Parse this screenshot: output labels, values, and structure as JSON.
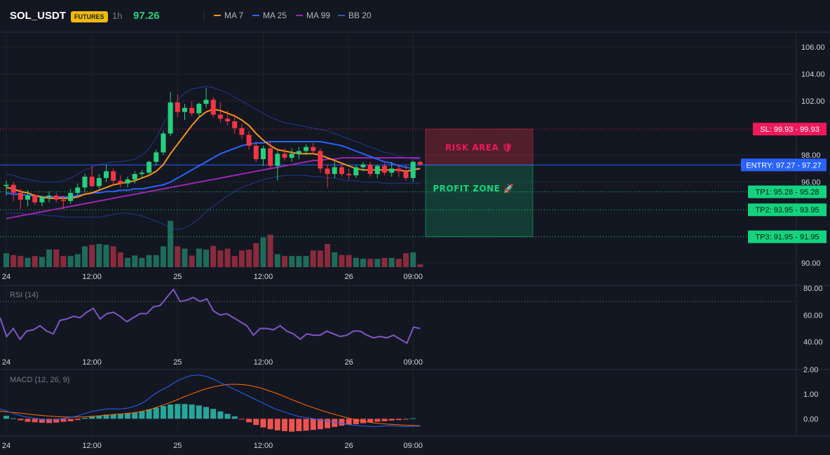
{
  "header": {
    "symbol": "SOL_USDT",
    "badge": "FUTURES",
    "timeframe": "1h",
    "price": "97.26",
    "legend": [
      {
        "name": "MA 7",
        "color": "#f7931a"
      },
      {
        "name": "MA 25",
        "color": "#2962ff"
      },
      {
        "name": "MA 99",
        "color": "#9c27b0"
      },
      {
        "name": "BB 20",
        "color": "#1e3a8a"
      }
    ]
  },
  "colors": {
    "up": "#26d07c",
    "down": "#f23645",
    "up_volume": "#1f6b5a",
    "down_volume": "#8a2a3d",
    "ma7": "#f7931a",
    "ma25": "#2962ff",
    "ma99": "#9c27b0",
    "bb": "#1e3a8a",
    "rsi": "#7e57c2",
    "macd": "#2962ff",
    "signal": "#ff6d00",
    "hist_up": "#26a69a",
    "hist_down": "#ef5350"
  },
  "chart_data": {
    "type": "candlestick",
    "price_ticks": [
      "106.00",
      "104.00",
      "102.00",
      "98.00",
      "96.00",
      "90.00"
    ],
    "price_ylim": [
      89.7,
      107
    ],
    "x_ticks": [
      {
        "label": "24",
        "index": 0
      },
      {
        "label": "12:00",
        "index": 12
      },
      {
        "label": "25",
        "index": 24
      },
      {
        "label": "12:00",
        "index": 36
      },
      {
        "label": "26",
        "index": 48
      },
      {
        "label": "09:00",
        "index": 57
      }
    ],
    "candles": [
      {
        "o": 95.7,
        "h": 96.1,
        "l": 95.0,
        "c": 95.8,
        "v": 0.3
      },
      {
        "o": 95.8,
        "h": 96.0,
        "l": 94.6,
        "c": 95.2,
        "v": 0.26
      },
      {
        "o": 95.2,
        "h": 95.5,
        "l": 94.0,
        "c": 94.7,
        "v": 0.24
      },
      {
        "o": 94.7,
        "h": 95.4,
        "l": 94.2,
        "c": 95.0,
        "v": 0.2
      },
      {
        "o": 95.0,
        "h": 95.1,
        "l": 94.3,
        "c": 94.5,
        "v": 0.24
      },
      {
        "o": 94.5,
        "h": 95.0,
        "l": 94.2,
        "c": 94.9,
        "v": 0.22
      },
      {
        "o": 94.9,
        "h": 95.3,
        "l": 94.5,
        "c": 95.0,
        "v": 0.38
      },
      {
        "o": 95.0,
        "h": 95.2,
        "l": 94.5,
        "c": 94.7,
        "v": 0.38
      },
      {
        "o": 94.7,
        "h": 95.0,
        "l": 94.0,
        "c": 94.6,
        "v": 0.24
      },
      {
        "o": 94.6,
        "h": 95.5,
        "l": 94.4,
        "c": 95.2,
        "v": 0.24
      },
      {
        "o": 95.2,
        "h": 95.9,
        "l": 95.0,
        "c": 95.6,
        "v": 0.28
      },
      {
        "o": 95.6,
        "h": 96.6,
        "l": 95.2,
        "c": 96.4,
        "v": 0.45
      },
      {
        "o": 96.4,
        "h": 97.2,
        "l": 95.6,
        "c": 95.7,
        "v": 0.48
      },
      {
        "o": 95.7,
        "h": 96.6,
        "l": 95.5,
        "c": 96.3,
        "v": 0.5
      },
      {
        "o": 96.3,
        "h": 97.3,
        "l": 96.0,
        "c": 96.8,
        "v": 0.48
      },
      {
        "o": 96.8,
        "h": 97.0,
        "l": 95.8,
        "c": 96.1,
        "v": 0.45
      },
      {
        "o": 96.1,
        "h": 96.5,
        "l": 95.6,
        "c": 95.9,
        "v": 0.32
      },
      {
        "o": 95.9,
        "h": 96.4,
        "l": 95.6,
        "c": 96.2,
        "v": 0.2
      },
      {
        "o": 96.2,
        "h": 96.8,
        "l": 95.9,
        "c": 96.6,
        "v": 0.25
      },
      {
        "o": 96.6,
        "h": 96.9,
        "l": 96.3,
        "c": 96.7,
        "v": 0.2
      },
      {
        "o": 96.7,
        "h": 97.6,
        "l": 96.6,
        "c": 97.5,
        "v": 0.26
      },
      {
        "o": 97.5,
        "h": 98.4,
        "l": 97.2,
        "c": 98.2,
        "v": 0.26
      },
      {
        "o": 98.2,
        "h": 99.8,
        "l": 98.0,
        "c": 99.6,
        "v": 0.45
      },
      {
        "o": 99.6,
        "h": 102.7,
        "l": 99.4,
        "c": 101.9,
        "v": 1.0
      },
      {
        "o": 101.9,
        "h": 102.5,
        "l": 100.8,
        "c": 101.2,
        "v": 0.45
      },
      {
        "o": 101.2,
        "h": 101.8,
        "l": 100.6,
        "c": 101.5,
        "v": 0.4
      },
      {
        "o": 101.5,
        "h": 102.0,
        "l": 100.9,
        "c": 101.1,
        "v": 0.25
      },
      {
        "o": 101.1,
        "h": 101.9,
        "l": 100.8,
        "c": 101.8,
        "v": 0.4
      },
      {
        "o": 101.8,
        "h": 103.0,
        "l": 101.5,
        "c": 102.1,
        "v": 0.38
      },
      {
        "o": 102.1,
        "h": 102.3,
        "l": 100.8,
        "c": 101.0,
        "v": 0.46
      },
      {
        "o": 101.0,
        "h": 101.9,
        "l": 100.4,
        "c": 100.7,
        "v": 0.36
      },
      {
        "o": 100.7,
        "h": 101.3,
        "l": 100.2,
        "c": 100.5,
        "v": 0.4
      },
      {
        "o": 100.5,
        "h": 101.0,
        "l": 99.6,
        "c": 100.0,
        "v": 0.24
      },
      {
        "o": 100.0,
        "h": 100.3,
        "l": 99.2,
        "c": 99.5,
        "v": 0.36
      },
      {
        "o": 99.5,
        "h": 99.8,
        "l": 98.4,
        "c": 98.7,
        "v": 0.38
      },
      {
        "o": 98.7,
        "h": 99.0,
        "l": 97.5,
        "c": 97.7,
        "v": 0.52
      },
      {
        "o": 97.7,
        "h": 98.7,
        "l": 97.2,
        "c": 98.5,
        "v": 0.64
      },
      {
        "o": 98.5,
        "h": 99.0,
        "l": 97.0,
        "c": 97.2,
        "v": 0.7
      },
      {
        "o": 97.2,
        "h": 98.3,
        "l": 96.1,
        "c": 98.1,
        "v": 0.28
      },
      {
        "o": 98.1,
        "h": 98.5,
        "l": 97.6,
        "c": 97.8,
        "v": 0.24
      },
      {
        "o": 97.8,
        "h": 98.5,
        "l": 97.5,
        "c": 98.1,
        "v": 0.24
      },
      {
        "o": 98.1,
        "h": 98.6,
        "l": 97.7,
        "c": 98.3,
        "v": 0.24
      },
      {
        "o": 98.3,
        "h": 98.8,
        "l": 98.0,
        "c": 98.6,
        "v": 0.24
      },
      {
        "o": 98.6,
        "h": 98.9,
        "l": 98.1,
        "c": 98.3,
        "v": 0.36
      },
      {
        "o": 98.3,
        "h": 98.5,
        "l": 96.7,
        "c": 97.0,
        "v": 0.36
      },
      {
        "o": 97.0,
        "h": 97.3,
        "l": 95.6,
        "c": 96.6,
        "v": 0.5
      },
      {
        "o": 96.6,
        "h": 97.5,
        "l": 96.3,
        "c": 97.1,
        "v": 0.32
      },
      {
        "o": 97.1,
        "h": 97.4,
        "l": 96.4,
        "c": 96.6,
        "v": 0.26
      },
      {
        "o": 96.6,
        "h": 97.0,
        "l": 96.2,
        "c": 96.5,
        "v": 0.26
      },
      {
        "o": 96.5,
        "h": 97.3,
        "l": 96.3,
        "c": 97.1,
        "v": 0.2
      },
      {
        "o": 97.1,
        "h": 97.5,
        "l": 96.8,
        "c": 97.3,
        "v": 0.18
      },
      {
        "o": 97.3,
        "h": 97.5,
        "l": 96.4,
        "c": 96.6,
        "v": 0.18
      },
      {
        "o": 96.6,
        "h": 97.3,
        "l": 96.3,
        "c": 97.2,
        "v": 0.18
      },
      {
        "o": 97.2,
        "h": 97.4,
        "l": 96.5,
        "c": 96.7,
        "v": 0.2
      },
      {
        "o": 96.7,
        "h": 97.5,
        "l": 96.4,
        "c": 97.0,
        "v": 0.2
      },
      {
        "o": 97.0,
        "h": 97.3,
        "l": 96.4,
        "c": 96.8,
        "v": 0.18
      },
      {
        "o": 96.8,
        "h": 97.3,
        "l": 96.1,
        "c": 96.3,
        "v": 0.3
      },
      {
        "o": 96.3,
        "h": 97.6,
        "l": 96.0,
        "c": 97.5,
        "v": 0.32
      },
      {
        "o": 97.5,
        "h": 97.6,
        "l": 97.2,
        "c": 97.3,
        "v": 0.06
      }
    ],
    "ma7": [
      95.6,
      95.5,
      95.3,
      95.2,
      95.0,
      94.9,
      94.8,
      94.8,
      94.8,
      94.8,
      94.9,
      95.1,
      95.2,
      95.4,
      95.6,
      95.8,
      95.9,
      96.0,
      96.1,
      96.3,
      96.5,
      96.8,
      97.3,
      98.1,
      98.8,
      99.5,
      100.2,
      100.8,
      101.2,
      101.4,
      101.3,
      101.1,
      100.9,
      100.6,
      100.2,
      99.6,
      99.1,
      98.7,
      98.4,
      98.3,
      98.2,
      98.1,
      98.1,
      98.1,
      98.0,
      97.8,
      97.6,
      97.4,
      97.2,
      97.0,
      96.9,
      96.9,
      96.9,
      96.9,
      96.9,
      96.9,
      96.8,
      96.9,
      97.0
    ],
    "ma25": [
      95.2,
      95.1,
      95.1,
      95.0,
      95.0,
      94.9,
      94.9,
      94.9,
      94.9,
      94.9,
      95.0,
      95.1,
      95.2,
      95.2,
      95.3,
      95.3,
      95.4,
      95.4,
      95.5,
      95.5,
      95.6,
      95.7,
      95.8,
      96.0,
      96.3,
      96.6,
      96.9,
      97.2,
      97.5,
      97.8,
      98.1,
      98.3,
      98.5,
      98.7,
      98.8,
      98.9,
      98.9,
      99.0,
      99.0,
      99.0,
      99.0,
      99.0,
      99.0,
      99.0,
      99.0,
      98.9,
      98.8,
      98.7,
      98.5,
      98.3,
      98.1,
      97.9,
      97.7,
      97.5,
      97.4,
      97.2,
      97.1,
      97.0,
      97.0
    ],
    "ma99": [
      93.3,
      93.4,
      93.5,
      93.6,
      93.7,
      93.8,
      93.9,
      94.0,
      94.1,
      94.2,
      94.3,
      94.4,
      94.5,
      94.6,
      94.7,
      94.8,
      94.9,
      95.0,
      95.1,
      95.2,
      95.3,
      95.4,
      95.5,
      95.6,
      95.7,
      95.8,
      95.9,
      96.0,
      96.1,
      96.2,
      96.3,
      96.4,
      96.5,
      96.6,
      96.7,
      96.8,
      96.9,
      97.0,
      97.1,
      97.2,
      97.3,
      97.4,
      97.5,
      97.6,
      97.6,
      97.7,
      97.7,
      97.8,
      97.8,
      97.8,
      97.8,
      97.8,
      97.8,
      97.8,
      97.8,
      97.8,
      97.8,
      97.8,
      97.8
    ],
    "bb_upper": [
      96.6,
      96.5,
      96.3,
      96.2,
      96.1,
      96.0,
      96.0,
      96.0,
      96.1,
      96.3,
      96.6,
      96.9,
      97.1,
      97.3,
      97.4,
      97.5,
      97.5,
      97.6,
      97.7,
      98.0,
      98.5,
      99.3,
      100.3,
      101.3,
      102.1,
      102.6,
      102.9,
      103.0,
      103.1,
      103.0,
      102.8,
      102.6,
      102.3,
      102.0,
      101.7,
      101.4,
      101.1,
      100.8,
      100.6,
      100.4,
      100.3,
      100.2,
      100.1,
      100.0,
      99.9,
      99.8,
      99.6,
      99.4,
      99.2,
      99.0,
      98.8,
      98.6,
      98.4,
      98.2,
      98.1,
      97.9,
      97.8,
      97.7,
      97.7
    ],
    "bb_lower": [
      93.7,
      93.7,
      93.7,
      93.6,
      93.6,
      93.6,
      93.5,
      93.5,
      93.4,
      93.4,
      93.4,
      93.4,
      93.4,
      93.4,
      93.5,
      93.6,
      93.7,
      93.7,
      93.6,
      93.5,
      93.3,
      93.1,
      92.9,
      92.6,
      92.5,
      92.6,
      92.9,
      93.3,
      93.8,
      94.2,
      94.6,
      95.0,
      95.3,
      95.6,
      95.8,
      96.0,
      96.2,
      96.3,
      96.4,
      96.5,
      96.5,
      96.5,
      96.5,
      96.4,
      96.4,
      96.3,
      96.3,
      96.2,
      96.1,
      96.1,
      96.0,
      96.0,
      96.0,
      95.9,
      95.9,
      95.9,
      95.9,
      95.9,
      95.9
    ],
    "levels": {
      "sl": {
        "label": "SL: 99.93 - 99.93",
        "value": 99.93,
        "color": "#f0195b"
      },
      "entry": {
        "label": "ENTRY: 97.27 - 97.27",
        "value": 97.27,
        "color": "#2962ff"
      },
      "tp1": {
        "label": "TP1: 95.28 - 95.28",
        "value": 95.28,
        "color": "#14d37f"
      },
      "tp2": {
        "label": "TP2: 93.95 - 93.95",
        "value": 93.95,
        "color": "#14d37f"
      },
      "tp3": {
        "label": "TP3: 91.95 - 91.95",
        "value": 91.95,
        "color": "#14d37f"
      }
    },
    "risk_area_label": "RISK AREA 🛡",
    "profit_zone_label": "PROFIT ZONE 🚀",
    "rsi": {
      "label": "RSI (14)",
      "ticks": [
        "80.00",
        "60.00",
        "40.00"
      ],
      "ylim": [
        31,
        82
      ],
      "overbought": 70,
      "values": [
        58,
        44,
        50,
        42,
        48,
        49,
        52,
        48,
        46,
        56,
        57,
        59,
        58,
        62,
        65,
        57,
        61,
        62,
        59,
        55,
        58,
        61,
        61,
        66,
        67,
        73,
        79,
        70,
        71,
        73,
        70,
        72,
        63,
        60,
        61,
        58,
        55,
        52,
        45,
        50,
        50,
        49,
        52,
        48,
        46,
        42,
        46,
        45,
        45,
        48,
        46,
        44,
        45,
        48,
        48,
        45,
        43,
        44,
        43,
        45,
        42,
        39,
        51,
        50
      ]
    },
    "macd": {
      "label": "MACD (12, 26, 9)",
      "ticks": [
        "2.00",
        "1.00",
        "0.00"
      ],
      "ylim": [
        -0.7,
        2.0
      ],
      "macd_values": [
        0.4,
        0.3,
        0.2,
        0.1,
        0.05,
        0.0,
        -0.05,
        -0.05,
        0.0,
        0.05,
        0.1,
        0.2,
        0.3,
        0.35,
        0.4,
        0.4,
        0.4,
        0.45,
        0.55,
        0.7,
        0.95,
        1.15,
        1.3,
        1.5,
        1.65,
        1.75,
        1.78,
        1.72,
        1.6,
        1.45,
        1.3,
        1.15,
        1.0,
        0.85,
        0.7,
        0.55,
        0.4,
        0.3,
        0.2,
        0.1,
        0.05,
        0.0,
        -0.05,
        -0.1,
        -0.15,
        -0.2,
        -0.25,
        -0.28,
        -0.3,
        -0.32,
        -0.3,
        -0.28,
        -0.3,
        -0.32,
        -0.3,
        -0.3
      ],
      "signal_values": [
        0.3,
        0.28,
        0.25,
        0.22,
        0.18,
        0.15,
        0.12,
        0.1,
        0.08,
        0.07,
        0.07,
        0.08,
        0.1,
        0.12,
        0.15,
        0.18,
        0.2,
        0.23,
        0.27,
        0.33,
        0.42,
        0.52,
        0.63,
        0.75,
        0.88,
        1.0,
        1.12,
        1.22,
        1.3,
        1.36,
        1.4,
        1.4,
        1.38,
        1.33,
        1.26,
        1.16,
        1.05,
        0.93,
        0.8,
        0.68,
        0.56,
        0.45,
        0.35,
        0.25,
        0.16,
        0.08,
        0.0,
        -0.07,
        -0.12,
        -0.17,
        -0.2,
        -0.22,
        -0.24,
        -0.26,
        -0.27,
        -0.28
      ],
      "hist": [
        0.12,
        0.02,
        -0.06,
        -0.12,
        -0.14,
        -0.16,
        -0.17,
        -0.15,
        -0.12,
        -0.1,
        -0.05,
        0.04,
        0.1,
        0.13,
        0.17,
        0.18,
        0.2,
        0.22,
        0.25,
        0.3,
        0.38,
        0.45,
        0.52,
        0.58,
        0.6,
        0.6,
        0.58,
        0.54,
        0.48,
        0.4,
        0.3,
        0.2,
        0.1,
        -0.02,
        -0.14,
        -0.25,
        -0.35,
        -0.42,
        -0.47,
        -0.5,
        -0.52,
        -0.5,
        -0.48,
        -0.45,
        -0.42,
        -0.38,
        -0.33,
        -0.28,
        -0.24,
        -0.22,
        -0.18,
        -0.14,
        -0.12,
        -0.1,
        -0.07,
        -0.05,
        -0.03,
        0.02
      ]
    }
  }
}
